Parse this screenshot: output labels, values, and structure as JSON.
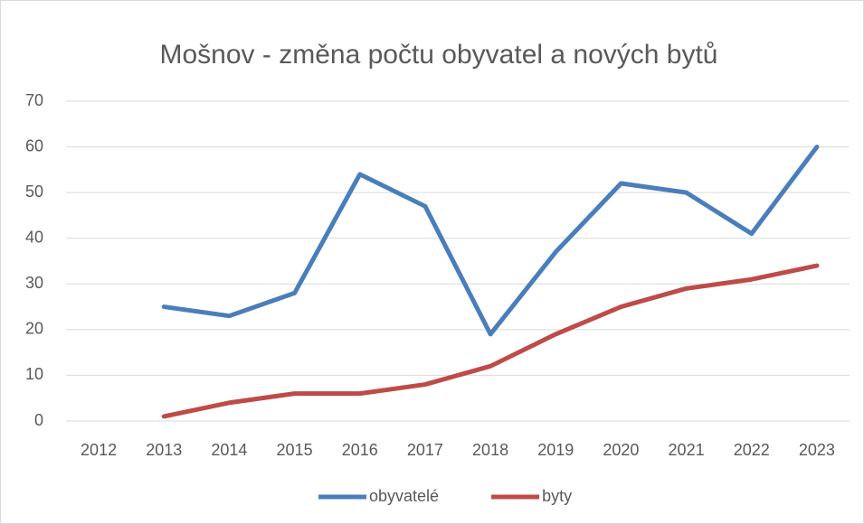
{
  "chart_data": {
    "type": "line",
    "title": "Mošnov - změna počtu obyvatel a nových bytů",
    "categories": [
      "2012",
      "2013",
      "2014",
      "2015",
      "2016",
      "2017",
      "2018",
      "2019",
      "2020",
      "2021",
      "2022",
      "2023"
    ],
    "series": [
      {
        "name": "obyvatelé",
        "color": "#4a7ebb",
        "values": [
          null,
          25,
          23,
          28,
          54,
          47,
          19,
          37,
          52,
          50,
          41,
          60
        ]
      },
      {
        "name": "byty",
        "color": "#be4b48",
        "values": [
          null,
          1,
          4,
          6,
          6,
          8,
          12,
          19,
          25,
          29,
          31,
          34
        ]
      }
    ],
    "ylim": [
      0,
      70
    ],
    "yticks": [
      0,
      10,
      20,
      30,
      40,
      50,
      60,
      70
    ],
    "grid": true,
    "legend": "bottom"
  }
}
